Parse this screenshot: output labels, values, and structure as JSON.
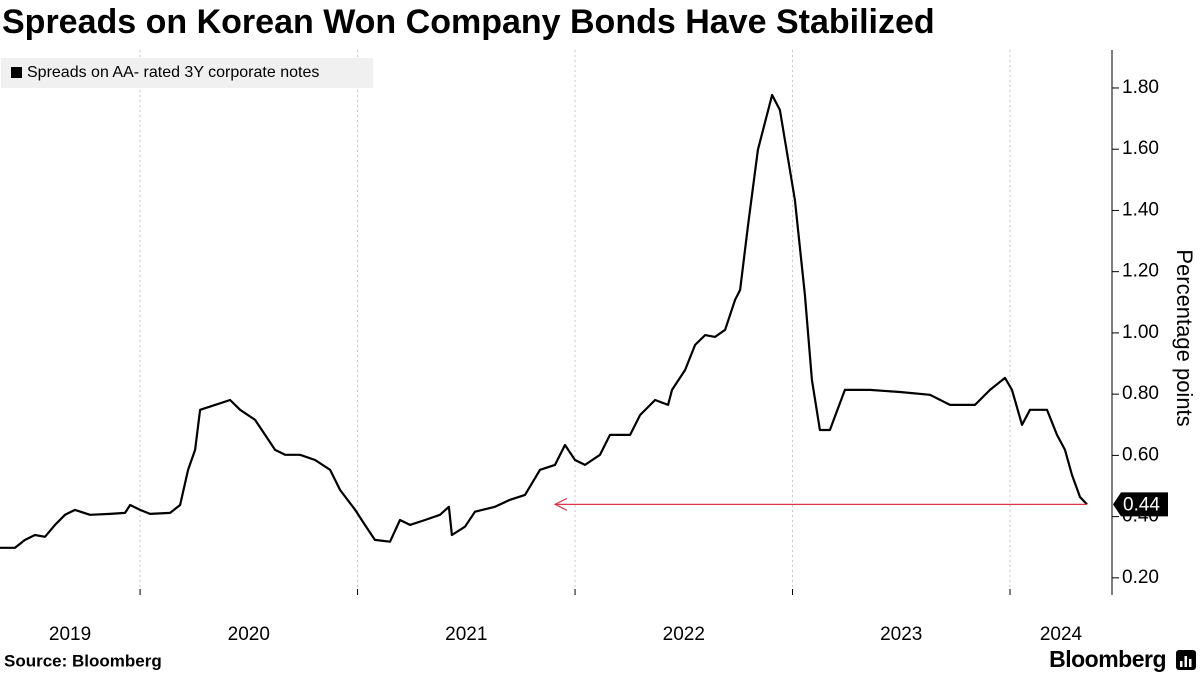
{
  "chart_data": {
    "type": "line",
    "title": "Spreads on Korean Won Company Bonds Have Stabilized",
    "ylabel": "Percentage points",
    "source": "Source: Bloomberg",
    "brand": "Bloomberg",
    "series": [
      {
        "name": "Spreads on AA- rated 3Y corporate notes",
        "color": "#000000",
        "x": [
          2019.356,
          2019.425,
          2019.471,
          2019.517,
          2019.563,
          2019.609,
          2019.655,
          2019.701,
          2019.77,
          2019.862,
          2019.931,
          2019.954,
          2020.0,
          2020.046,
          2020.138,
          2020.184,
          2020.221,
          2020.253,
          2020.276,
          2020.345,
          2020.414,
          2020.46,
          2020.529,
          2020.575,
          2020.621,
          2020.667,
          2020.736,
          2020.805,
          2020.874,
          2020.92,
          2020.989,
          2021.034,
          2021.08,
          2021.149,
          2021.195,
          2021.241,
          2021.31,
          2021.379,
          2021.42,
          2021.434,
          2021.494,
          2021.54,
          2021.632,
          2021.701,
          2021.77,
          2021.839,
          2021.908,
          2021.954,
          2022.0,
          2022.046,
          2022.115,
          2022.161,
          2022.253,
          2022.299,
          2022.368,
          2022.428,
          2022.446,
          2022.506,
          2022.552,
          2022.598,
          2022.644,
          2022.69,
          2022.736,
          2022.759,
          2022.796,
          2022.841,
          2022.906,
          2022.942,
          2022.965,
          2023.011,
          2023.057,
          2023.089,
          2023.126,
          2023.172,
          2023.241,
          2023.356,
          2023.494,
          2023.632,
          2023.724,
          2023.839,
          2023.908,
          2023.977,
          2024.009,
          2024.055,
          2024.092,
          2024.17,
          2024.216,
          2024.253,
          2024.285,
          2024.322,
          2024.354
        ],
        "values": [
          0.298,
          0.298,
          0.324,
          0.34,
          0.334,
          0.373,
          0.406,
          0.422,
          0.406,
          0.409,
          0.412,
          0.438,
          0.422,
          0.409,
          0.412,
          0.438,
          0.553,
          0.618,
          0.749,
          0.765,
          0.781,
          0.749,
          0.716,
          0.667,
          0.618,
          0.602,
          0.602,
          0.585,
          0.553,
          0.487,
          0.422,
          0.373,
          0.324,
          0.318,
          0.389,
          0.373,
          0.389,
          0.406,
          0.432,
          0.34,
          0.367,
          0.416,
          0.432,
          0.455,
          0.471,
          0.553,
          0.569,
          0.634,
          0.585,
          0.569,
          0.602,
          0.667,
          0.667,
          0.732,
          0.781,
          0.765,
          0.814,
          0.879,
          0.961,
          0.993,
          0.987,
          1.01,
          1.108,
          1.14,
          1.353,
          1.598,
          1.777,
          1.728,
          1.63,
          1.434,
          1.124,
          0.847,
          0.683,
          0.683,
          0.814,
          0.814,
          0.807,
          0.798,
          0.765,
          0.765,
          0.814,
          0.853,
          0.814,
          0.7,
          0.749,
          0.749,
          0.667,
          0.618,
          0.536,
          0.464,
          0.44
        ]
      }
    ],
    "annotation": {
      "label": "0.44",
      "value": 0.44,
      "x_from": 2021.908
    },
    "xlim": [
      2019.356,
      2024.469
    ],
    "xticks": [
      2020,
      2021,
      2022,
      2023,
      2024
    ],
    "year_labels": [
      "2019",
      "2020",
      "2021",
      "2022",
      "2023",
      "2024"
    ],
    "ylim": [
      0.144,
      1.924
    ],
    "yticks": [
      {
        "value": 0.2,
        "label": "0.20"
      },
      {
        "value": 0.4,
        "label": "0.40"
      },
      {
        "value": 0.6,
        "label": "0.60"
      },
      {
        "value": 0.8,
        "label": "0.80"
      },
      {
        "value": 1.0,
        "label": "1.00"
      },
      {
        "value": 1.2,
        "label": "1.20"
      },
      {
        "value": 1.4,
        "label": "1.40"
      },
      {
        "value": 1.6,
        "label": "1.60"
      },
      {
        "value": 1.8,
        "label": "1.80"
      }
    ],
    "grid": true,
    "legend": "top-left"
  }
}
